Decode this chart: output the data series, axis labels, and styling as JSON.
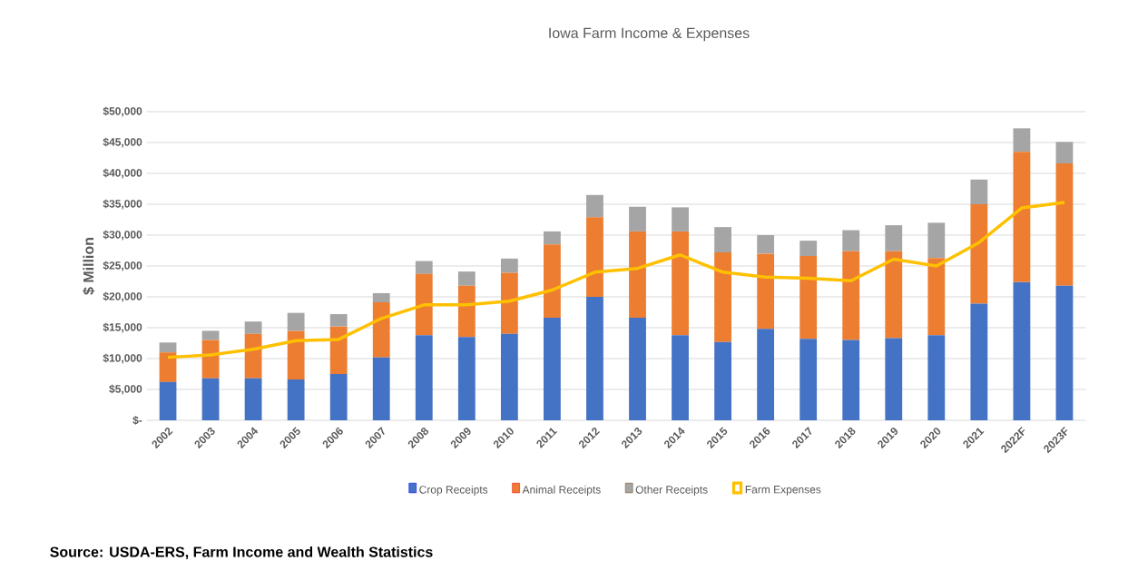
{
  "chart_data": {
    "type": "bar",
    "title": "Iowa Farm Income & Expenses",
    "ylabel": "$ Million",
    "stacked": true,
    "grid": "y",
    "legend": "bottom",
    "categories": [
      "2002",
      "2003",
      "2004",
      "2005",
      "2006",
      "2007",
      "2008",
      "2009",
      "2010",
      "2011",
      "2012",
      "2013",
      "2014",
      "2015",
      "2016",
      "2017",
      "2018",
      "2019",
      "2020",
      "2021",
      "2022F",
      "2023F"
    ],
    "ylim": [
      0,
      50000
    ],
    "yticks": [
      {
        "value": 0,
        "label": "$-"
      },
      {
        "value": 5000,
        "label": "$5,000"
      },
      {
        "value": 10000,
        "label": "$10,000"
      },
      {
        "value": 15000,
        "label": "$15,000"
      },
      {
        "value": 20000,
        "label": "$20,000"
      },
      {
        "value": 25000,
        "label": "$25,000"
      },
      {
        "value": 30000,
        "label": "$30,000"
      },
      {
        "value": 35000,
        "label": "$35,000"
      },
      {
        "value": 40000,
        "label": "$40,000"
      },
      {
        "value": 45000,
        "label": "$45,000"
      },
      {
        "value": 50000,
        "label": "$50,000"
      }
    ],
    "series": [
      {
        "name": "Crop Receipts",
        "color": "#4472c4",
        "values": [
          6200,
          6800,
          6800,
          6600,
          7500,
          10200,
          13800,
          13500,
          14000,
          16600,
          20000,
          16600,
          13800,
          12700,
          14800,
          13200,
          13000,
          13300,
          13800,
          18900,
          22400,
          21800
        ]
      },
      {
        "name": "Animal Receipts",
        "color": "#ed7d31",
        "values": [
          4800,
          6200,
          7200,
          7900,
          7700,
          8900,
          9900,
          8300,
          9900,
          11900,
          12900,
          14000,
          16800,
          14500,
          12200,
          13400,
          14400,
          14100,
          12500,
          16100,
          21100,
          19800
        ]
      },
      {
        "name": "Other Receipts",
        "color": "#a5a5a5",
        "values": [
          1600,
          1500,
          2000,
          2900,
          2000,
          1500,
          2100,
          2300,
          2300,
          2100,
          3600,
          4000,
          3900,
          4100,
          3000,
          2500,
          3400,
          4200,
          5700,
          4000,
          3800,
          3500
        ]
      },
      {
        "name": "Farm Expenses",
        "color": "#ffc000",
        "type": "line",
        "values": [
          10200,
          10600,
          11500,
          12900,
          13100,
          16500,
          18700,
          18700,
          19300,
          21100,
          24000,
          24600,
          26800,
          24000,
          23200,
          23000,
          22600,
          26100,
          25000,
          28800,
          34400,
          35300
        ]
      }
    ],
    "annotations": [
      "Source: USDA-ERS, Farm Income and Wealth Statistics"
    ]
  }
}
